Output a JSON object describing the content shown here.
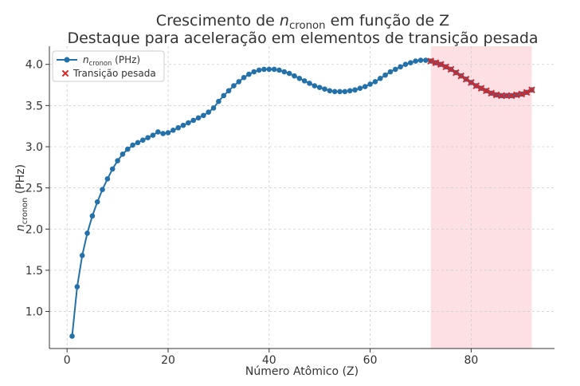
{
  "chart_data": {
    "type": "line",
    "title_line1_pre": "Crescimento de ",
    "title_line1_var": "n",
    "title_line1_sub": "cronon",
    "title_line1_post": " em função de Z",
    "title_line2": "Destaque para aceleração em elementos de transição pesada",
    "xlabel": "Número Atômico (Z)",
    "ylabel_var": "n",
    "ylabel_sub": "cronon",
    "ylabel_post": " (PHz)",
    "xlim": [
      -3.5,
      96.5
    ],
    "ylim": [
      0.55,
      4.22
    ],
    "xticks": [
      0,
      20,
      40,
      60,
      80
    ],
    "xtick_labels": [
      "0",
      "20",
      "40",
      "60",
      "80"
    ],
    "yticks": [
      1.0,
      1.5,
      2.0,
      2.5,
      3.0,
      3.5,
      4.0
    ],
    "ytick_labels": [
      "1.0",
      "1.5",
      "2.0",
      "2.5",
      "3.0",
      "3.5",
      "4.0"
    ],
    "grid": true,
    "legend_position": "top-left",
    "highlight_region": {
      "x_start": 72,
      "x_end": 92,
      "color": "#fddde1"
    },
    "series": [
      {
        "name_var": "n",
        "name_sub": "cronon",
        "name_post": " (PHz)",
        "color": "#2471aa",
        "marker": "circle",
        "x": [
          1,
          2,
          3,
          4,
          5,
          6,
          7,
          8,
          9,
          10,
          11,
          12,
          13,
          14,
          15,
          16,
          17,
          18,
          19,
          20,
          21,
          22,
          23,
          24,
          25,
          26,
          27,
          28,
          29,
          30,
          31,
          32,
          33,
          34,
          35,
          36,
          37,
          38,
          39,
          40,
          41,
          42,
          43,
          44,
          45,
          46,
          47,
          48,
          49,
          50,
          51,
          52,
          53,
          54,
          55,
          56,
          57,
          58,
          59,
          60,
          61,
          62,
          63,
          64,
          65,
          66,
          67,
          68,
          69,
          70,
          71,
          72,
          73,
          74,
          75,
          76,
          77,
          78,
          79,
          80,
          81,
          82,
          83,
          84,
          85,
          86,
          87,
          88,
          89,
          90,
          91,
          92
        ],
        "y": [
          0.7,
          1.3,
          1.68,
          1.95,
          2.16,
          2.33,
          2.48,
          2.61,
          2.73,
          2.83,
          2.91,
          2.97,
          3.02,
          3.05,
          3.08,
          3.11,
          3.14,
          3.18,
          3.16,
          3.17,
          3.2,
          3.23,
          3.26,
          3.29,
          3.32,
          3.35,
          3.38,
          3.42,
          3.47,
          3.55,
          3.62,
          3.68,
          3.74,
          3.79,
          3.84,
          3.88,
          3.91,
          3.93,
          3.94,
          3.94,
          3.94,
          3.93,
          3.91,
          3.89,
          3.86,
          3.83,
          3.8,
          3.77,
          3.74,
          3.72,
          3.7,
          3.68,
          3.67,
          3.67,
          3.67,
          3.68,
          3.69,
          3.71,
          3.73,
          3.76,
          3.79,
          3.83,
          3.87,
          3.91,
          3.94,
          3.97,
          4.0,
          4.02,
          4.04,
          4.05,
          4.05,
          4.04,
          4.02,
          4.0,
          3.97,
          3.94,
          3.9,
          3.86,
          3.82,
          3.78,
          3.74,
          3.71,
          3.68,
          3.65,
          3.63,
          3.62,
          3.62,
          3.62,
          3.63,
          3.64,
          3.66,
          3.69
        ]
      },
      {
        "name": "Transição pesada",
        "color": "#d62728",
        "marker": "x",
        "x": [
          72,
          73,
          74,
          75,
          76,
          77,
          78,
          79,
          80,
          81,
          82,
          83,
          84,
          85,
          86,
          87,
          88,
          89,
          90,
          91,
          92
        ],
        "y": [
          4.04,
          4.02,
          4.0,
          3.97,
          3.94,
          3.9,
          3.86,
          3.82,
          3.78,
          3.74,
          3.71,
          3.68,
          3.65,
          3.63,
          3.62,
          3.62,
          3.62,
          3.63,
          3.64,
          3.66,
          3.69
        ]
      }
    ]
  }
}
